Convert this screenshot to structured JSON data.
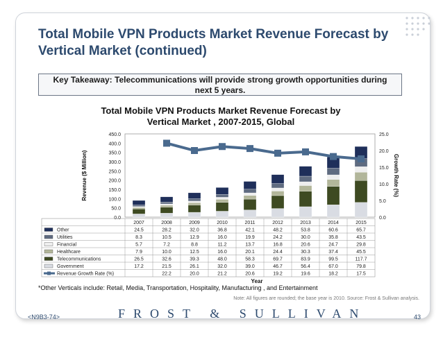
{
  "slide": {
    "title_line1": "Total Mobile VPN Products Market Revenue Forecast by",
    "title_line2": "Vertical Market (continued)",
    "takeaway_line1": "Key Takeaway: Telecommunications will provide strong growth opportunities during",
    "takeaway_line2": "next 5 years.",
    "footnote": "*Other Verticals include: Retail, Media, Transportation, Hospitality, Manufacturing , and Entertainment",
    "note": "Note: All figures are rounded; the base year is 2010. Source: Frost & Sullivan analysis.",
    "logo": "FROST & SULLIVAN",
    "code": "<N9B3-74>",
    "page_number": "43"
  },
  "chart_data": {
    "type": "bar",
    "stacked": true,
    "title_line1": "Total Mobile VPN Products Market Revenue Forecast by",
    "title_line2": "Vertical Market , 2007-2015, Global",
    "xlabel": "Year",
    "ylabel": "Revenue ($ Million)",
    "y2label": "Growth Rate (%)",
    "ylim": [
      0,
      450
    ],
    "y2lim": [
      0,
      25
    ],
    "yticks": [
      "0.0",
      "50.0",
      "100.0",
      "150.0",
      "200.0",
      "250.0",
      "300.0",
      "350.0",
      "400.0",
      "450.0"
    ],
    "y2ticks": [
      "0.0",
      "5.0",
      "10.0",
      "15.0",
      "20.0",
      "25.0"
    ],
    "categories": [
      "2007",
      "2008",
      "2009",
      "2010",
      "2011",
      "2012",
      "2013",
      "2014",
      "2015"
    ],
    "series": [
      {
        "name": "Government",
        "color": "#d9dce3",
        "values": [
          17.2,
          21.5,
          26.1,
          32.0,
          39.0,
          46.7,
          56.4,
          67.0,
          79.8
        ]
      },
      {
        "name": "Telecommunications",
        "color": "#3e4a22",
        "values": [
          26.5,
          32.6,
          39.3,
          48.0,
          58.3,
          69.7,
          83.9,
          99.5,
          117.7
        ]
      },
      {
        "name": "Healthcare",
        "color": "#b2b69a",
        "values": [
          7.9,
          10.0,
          12.5,
          16.0,
          20.1,
          24.4,
          30.3,
          37.4,
          45.5
        ]
      },
      {
        "name": "Financial",
        "color": "#eeeeee",
        "values": [
          5.7,
          7.2,
          8.8,
          11.2,
          13.7,
          16.8,
          20.6,
          24.7,
          29.8
        ]
      },
      {
        "name": "Utilities",
        "color": "#5f6b80",
        "values": [
          8.3,
          10.5,
          12.9,
          16.0,
          19.9,
          24.2,
          30.0,
          35.8,
          43.5
        ]
      },
      {
        "name": "Other",
        "color": "#1f2f5a",
        "values": [
          24.5,
          28.2,
          32.0,
          36.8,
          42.1,
          48.2,
          53.8,
          60.6,
          65.7
        ]
      }
    ],
    "table_rows": [
      "Other",
      "Utilities",
      "Financial",
      "Healthcare",
      "Telecommunications",
      "Government"
    ],
    "line_series": {
      "name": "Revenue Growth Rate (%)",
      "color": "#4a6a8e",
      "values": [
        null,
        22.2,
        20.0,
        21.2,
        20.6,
        19.2,
        19.6,
        18.2,
        17.5
      ],
      "labels": [
        "",
        "22.2",
        "20.0",
        "21.2",
        "20.6",
        "19.2",
        "19.6",
        "18.2",
        "17.5"
      ]
    }
  }
}
